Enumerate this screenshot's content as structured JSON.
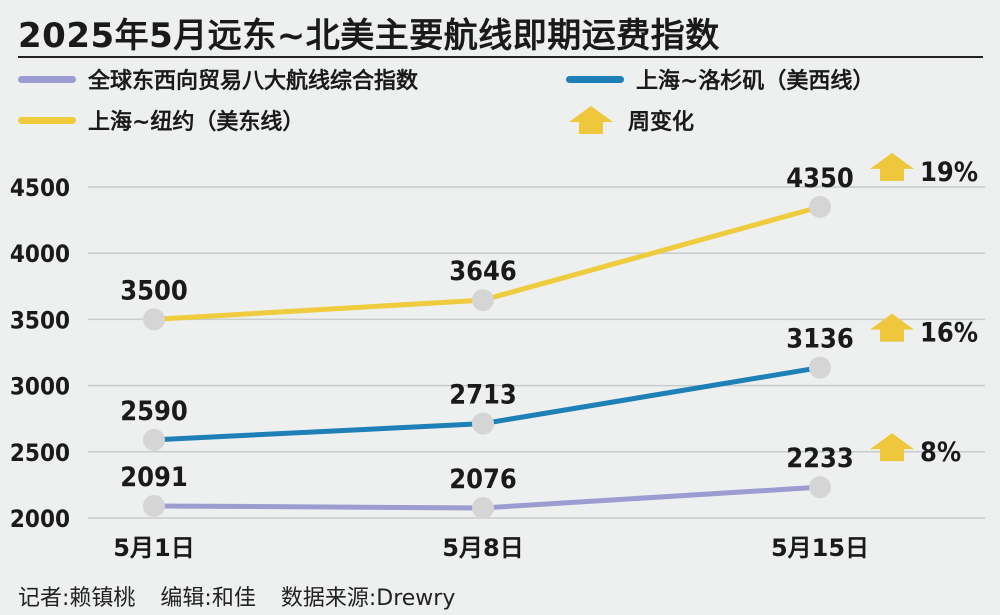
{
  "title": "2025年5月远东~北美主要航线即期运费指数",
  "legend": {
    "items": [
      {
        "label": "全球东西向贸易八大航线综合指数",
        "color": "#9c9cd1"
      },
      {
        "label": "上海~洛杉矶（美西线）",
        "color": "#1f7fb7"
      },
      {
        "label": "上海~纽约（美东线）",
        "color": "#efcb3e"
      },
      {
        "label": "周变化",
        "color": "#efc73c",
        "icon": "up-arrow-icon"
      }
    ]
  },
  "chart_data": {
    "type": "line",
    "categories": [
      "5月1日",
      "5月8日",
      "5月15日"
    ],
    "ylim": [
      2000,
      4500
    ],
    "yticks": [
      2000,
      2500,
      3000,
      3500,
      4000,
      4500
    ],
    "grid": true,
    "series": [
      {
        "name": "上海~纽约（美东线）",
        "color": "#efcb3e",
        "values": [
          3500,
          3646,
          4350
        ],
        "labels": [
          "3500",
          "3646",
          "4350"
        ],
        "change": "19%"
      },
      {
        "name": "上海~洛杉矶（美西线）",
        "color": "#1f7fb7",
        "values": [
          2590,
          2713,
          3136
        ],
        "labels": [
          "2590",
          "2713",
          "3136"
        ],
        "change": "16%"
      },
      {
        "name": "全球东西向贸易八大航线综合指数",
        "color": "#9c9cd1",
        "values": [
          2091,
          2076,
          2233
        ],
        "labels": [
          "2091",
          "2076",
          "2233"
        ],
        "change": "8%"
      }
    ],
    "marker_color": "#d5d5d5",
    "arrow_color": "#efc73c"
  },
  "credits": {
    "reporter": "记者:赖镇桃",
    "editor": "编辑:和佳",
    "source": "数据来源:Drewry"
  }
}
